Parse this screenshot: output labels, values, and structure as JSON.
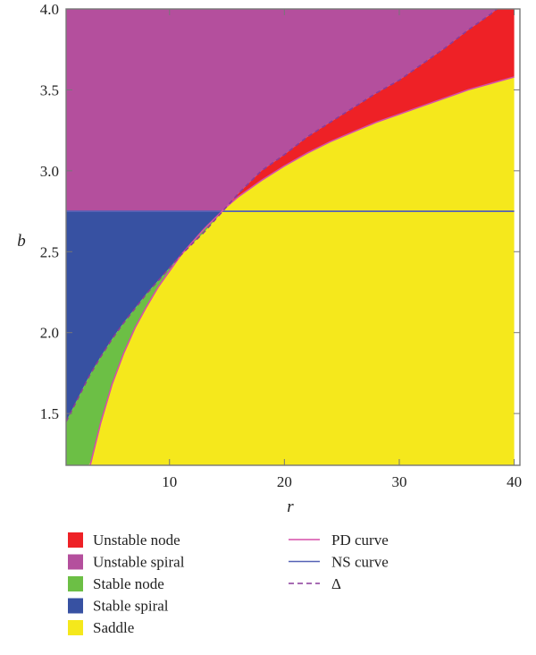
{
  "chart_data": {
    "type": "area",
    "title": "",
    "xlabel": "r",
    "ylabel": "b",
    "xlim": [
      1,
      40.5
    ],
    "ylim": [
      1.18,
      4.0
    ],
    "x_ticks": [
      10,
      20,
      30,
      40
    ],
    "y_ticks": [
      1.5,
      2.0,
      2.5,
      3.0,
      3.5,
      4.0
    ],
    "grid": false,
    "legend_position": "bottom",
    "curves": {
      "PD": {
        "name": "PD curve",
        "color": "#d64fa8",
        "points": [
          [
            3.1,
            1.18
          ],
          [
            4,
            1.44
          ],
          [
            5,
            1.68
          ],
          [
            6,
            1.87
          ],
          [
            7,
            2.03
          ],
          [
            8,
            2.16
          ],
          [
            9,
            2.28
          ],
          [
            10,
            2.38
          ],
          [
            11,
            2.48
          ],
          [
            12,
            2.56
          ],
          [
            13,
            2.64
          ],
          [
            14,
            2.71
          ],
          [
            15,
            2.78
          ],
          [
            16,
            2.84
          ],
          [
            18,
            2.94
          ],
          [
            20,
            3.03
          ],
          [
            22,
            3.11
          ],
          [
            24,
            3.18
          ],
          [
            26,
            3.24
          ],
          [
            28,
            3.3
          ],
          [
            30,
            3.35
          ],
          [
            32,
            3.4
          ],
          [
            34,
            3.45
          ],
          [
            36,
            3.5
          ],
          [
            38,
            3.54
          ],
          [
            40,
            3.58
          ]
        ]
      },
      "NS": {
        "name": "NS curve",
        "color": "#5561b5",
        "points": [
          [
            1,
            2.75
          ],
          [
            40,
            2.75
          ]
        ]
      },
      "Delta": {
        "name": "Δ",
        "color": "#8a3c9a",
        "style": "dashed",
        "points": [
          [
            1,
            1.45
          ],
          [
            2,
            1.59
          ],
          [
            3,
            1.73
          ],
          [
            4,
            1.85
          ],
          [
            5,
            1.96
          ],
          [
            6,
            2.06
          ],
          [
            7,
            2.15
          ],
          [
            8,
            2.24
          ],
          [
            9,
            2.32
          ],
          [
            10,
            2.4
          ],
          [
            11,
            2.48
          ],
          [
            12,
            2.55
          ],
          [
            13,
            2.62
          ],
          [
            14,
            2.7
          ],
          [
            15,
            2.78
          ],
          [
            16,
            2.86
          ],
          [
            17,
            2.93
          ],
          [
            18,
            3.0
          ],
          [
            20,
            3.1
          ],
          [
            22,
            3.21
          ],
          [
            24,
            3.3
          ],
          [
            26,
            3.39
          ],
          [
            28,
            3.48
          ],
          [
            30,
            3.56
          ],
          [
            32,
            3.66
          ],
          [
            34,
            3.76
          ],
          [
            36,
            3.87
          ],
          [
            38,
            3.97
          ],
          [
            38.5,
            4.0
          ]
        ]
      }
    },
    "regions": [
      {
        "name": "Unstable node",
        "color": "#ee2126"
      },
      {
        "name": "Unstable spiral",
        "color": "#b44f9d"
      },
      {
        "name": "Stable node",
        "color": "#6cbf45"
      },
      {
        "name": "Stable spiral",
        "color": "#3751a2"
      },
      {
        "name": "Saddle",
        "color": "#f5e81c"
      }
    ],
    "legend": [
      {
        "label": "Unstable node",
        "kind": "swatch",
        "color": "#ee2126"
      },
      {
        "label": "Unstable spiral",
        "kind": "swatch",
        "color": "#b44f9d"
      },
      {
        "label": "Stable node",
        "kind": "swatch",
        "color": "#6cbf45"
      },
      {
        "label": "Stable spiral",
        "kind": "swatch",
        "color": "#3751a2"
      },
      {
        "label": "Saddle",
        "kind": "swatch",
        "color": "#f5e81c"
      },
      {
        "label": "PD curve",
        "kind": "line",
        "color": "#d64fa8"
      },
      {
        "label": "NS curve",
        "kind": "line",
        "color": "#5561b5"
      },
      {
        "label": "Δ",
        "kind": "dashed",
        "color": "#8a3c9a"
      }
    ],
    "frame_color": "#777777"
  }
}
